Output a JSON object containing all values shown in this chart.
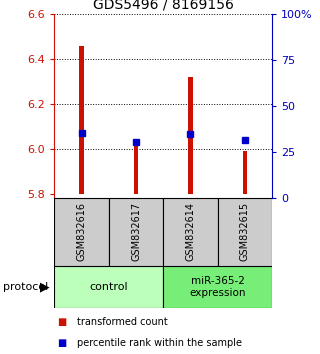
{
  "title": "GDS5496 / 8169156",
  "samples": [
    "GSM832616",
    "GSM832617",
    "GSM832614",
    "GSM832615"
  ],
  "bar_tops": [
    6.46,
    6.02,
    6.32,
    5.99
  ],
  "bar_base": 5.8,
  "blue_markers": [
    6.07,
    6.03,
    6.065,
    6.04
  ],
  "bar_color": "#cc1100",
  "marker_color": "#0000cc",
  "ylim_left": [
    5.78,
    6.6
  ],
  "ylim_right": [
    0,
    100
  ],
  "yticks_left": [
    5.8,
    6.0,
    6.2,
    6.4,
    6.6
  ],
  "yticks_right": [
    0,
    25,
    50,
    75,
    100
  ],
  "ytick_labels_right": [
    "0",
    "25",
    "50",
    "75",
    "100%"
  ],
  "groups": [
    {
      "label": "control",
      "color": "#bbffbb"
    },
    {
      "label": "miR-365-2\nexpression",
      "color": "#77ee77"
    }
  ],
  "legend_items": [
    {
      "color": "#cc1100",
      "label": "transformed count"
    },
    {
      "color": "#0000cc",
      "label": "percentile rank within the sample"
    }
  ],
  "bar_width": 0.08,
  "background_color": "#ffffff",
  "left_tick_color": "#cc1100",
  "right_tick_color": "#0000bb",
  "sample_box_color": "#cccccc",
  "protocol_label": "protocol"
}
